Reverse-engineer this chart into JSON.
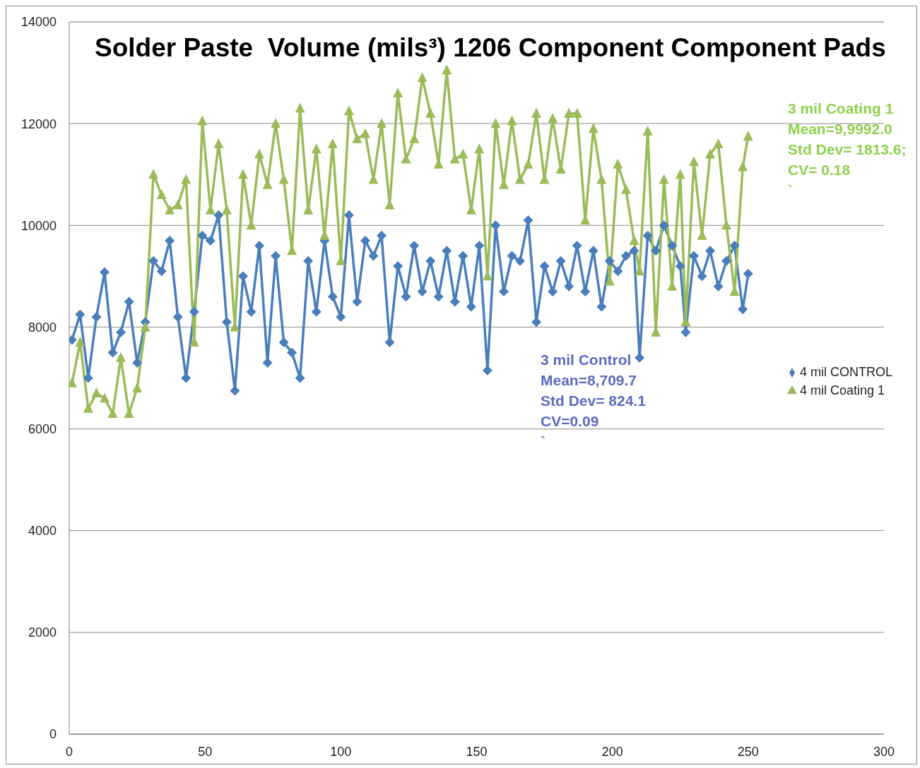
{
  "chart_data": {
    "type": "line",
    "title": "Solder Paste  Volume (mils³) 1206 Component Component Pads",
    "annotations": [
      "3 mil Control\nMean=8,709.7\nStd Dev= 824.1\nCV=0.09\n`",
      "3 mil Coating 1\nMean=9,9992.0\nStd Dev= 1813.6;\nCV= 0.18\n`"
    ],
    "x": [
      1,
      4,
      7,
      10,
      13,
      16,
      19,
      22,
      25,
      28,
      31,
      34,
      37,
      40,
      43,
      46,
      49,
      52,
      55,
      58,
      61,
      64,
      67,
      70,
      73,
      76,
      79,
      82,
      85,
      88,
      91,
      94,
      97,
      100,
      103,
      106,
      109,
      112,
      115,
      118,
      121,
      124,
      127,
      130,
      133,
      136,
      139,
      142,
      145,
      148,
      151,
      154,
      157,
      160,
      163,
      166,
      169,
      172,
      175,
      178,
      181,
      184,
      187,
      190,
      193,
      196,
      199,
      202,
      205,
      208,
      210,
      213,
      216,
      219,
      222,
      225,
      227,
      230,
      233,
      236,
      239,
      242,
      245,
      248,
      250
    ],
    "series": [
      {
        "name": "4 mil CONTROL",
        "color": "#4a7ebb",
        "marker": "diamond",
        "values": [
          7750,
          8250,
          7000,
          8200,
          9080,
          7500,
          7900,
          8500,
          7300,
          8100,
          9300,
          9100,
          9700,
          8200,
          7000,
          8300,
          9800,
          9700,
          10200,
          8100,
          6750,
          9000,
          8300,
          9600,
          7300,
          9400,
          7700,
          7500,
          7000,
          9300,
          8300,
          9700,
          8600,
          8200,
          10200,
          8500,
          9700,
          9400,
          9800,
          7700,
          9200,
          8600,
          9600,
          8700,
          9300,
          8600,
          9500,
          8500,
          9400,
          8400,
          9600,
          7150,
          10000,
          8700,
          9400,
          9300,
          10100,
          8100,
          9200,
          8700,
          9300,
          8800,
          9600,
          8700,
          9500,
          8400,
          9300,
          9100,
          9400,
          9500,
          7400,
          9800,
          9500,
          10000,
          9600,
          9200,
          7900,
          9400,
          9000,
          9500,
          8800,
          9300,
          9600,
          8350,
          9050
        ]
      },
      {
        "name": "4 mil Coating 1",
        "color": "#9bbb59",
        "marker": "triangle",
        "values": [
          6900,
          7700,
          6400,
          6700,
          6600,
          6300,
          7400,
          6300,
          6800,
          8000,
          11000,
          10600,
          10300,
          10400,
          10900,
          7700,
          12050,
          10300,
          11600,
          10300,
          8000,
          11000,
          10000,
          11400,
          10800,
          12000,
          10900,
          9500,
          12300,
          10300,
          11500,
          9800,
          11600,
          9300,
          12250,
          11700,
          11800,
          10900,
          12000,
          10400,
          12600,
          11300,
          11700,
          12900,
          12200,
          11200,
          13050,
          11300,
          11400,
          10300,
          11500,
          9000,
          12000,
          10800,
          12050,
          10900,
          11200,
          12200,
          10900,
          12100,
          11100,
          12200,
          12200,
          10100,
          11900,
          10900,
          8900,
          11200,
          10700,
          9700,
          9100,
          11850,
          7900,
          10900,
          8800,
          11000,
          8100,
          11250,
          9800,
          11400,
          11600,
          10000,
          8700,
          11150,
          11750
        ]
      }
    ],
    "xlim": [
      0,
      300
    ],
    "xticks": [
      0,
      50,
      100,
      150,
      200,
      250,
      300
    ],
    "ylim": [
      0,
      14000
    ],
    "yticks": [
      0,
      2000,
      4000,
      6000,
      8000,
      10000,
      12000,
      14000
    ],
    "grid": "y",
    "legend": "right",
    "line_style": "solid"
  }
}
